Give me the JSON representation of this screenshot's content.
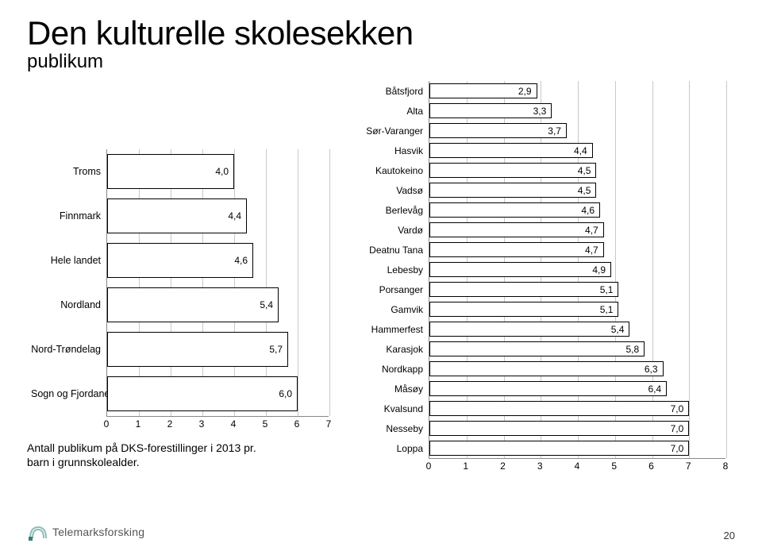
{
  "title": "Den kulturelle skolesekken",
  "subtitle": "publikum",
  "caption_line1": "Antall publikum på DKS-forestillinger i 2013 pr.",
  "caption_line2": "barn i grunnskolealder.",
  "page_number": "20",
  "logo_text": "Telemarksforsking",
  "colors": {
    "bar_fill": "#ffffff",
    "bar_border": "#000000",
    "grid": "#c9c9c9",
    "axis": "#888888",
    "text": "#000000",
    "background": "#ffffff",
    "logo_icon_fill": "#3f7b7a",
    "logo_icon_stroke": "#8dbdb9"
  },
  "fonts": {
    "title_size_pt": 32,
    "subtitle_size_pt": 18,
    "label_size_pt": 10,
    "value_size_pt": 9,
    "caption_size_pt": 11
  },
  "left_chart": {
    "type": "bar",
    "orientation": "horizontal",
    "xlim": [
      0,
      7
    ],
    "xtick_step": 1,
    "xticks": [
      "0",
      "1",
      "2",
      "3",
      "4",
      "5",
      "6",
      "7"
    ],
    "bar_height_ratio": 0.78,
    "categories": [
      "Troms",
      "Finnmark",
      "Hele landet",
      "Nordland",
      "Nord-Trøndelag",
      "Sogn og Fjordane"
    ],
    "values": [
      4.0,
      4.4,
      4.6,
      5.4,
      5.7,
      6.0
    ],
    "value_labels": [
      "4,0",
      "4,4",
      "4,6",
      "5,4",
      "5,7",
      "6,0"
    ]
  },
  "right_chart": {
    "type": "bar",
    "orientation": "horizontal",
    "xlim": [
      0,
      8
    ],
    "xtick_step": 1,
    "xticks": [
      "0",
      "1",
      "2",
      "3",
      "4",
      "5",
      "6",
      "7",
      "8"
    ],
    "bar_height_ratio": 0.78,
    "categories": [
      "Båtsfjord",
      "Alta",
      "Sør-Varanger",
      "Hasvik",
      "Kautokeino",
      "Vadsø",
      "Berlevåg",
      "Vardø",
      "Deatnu Tana",
      "Lebesby",
      "Porsanger",
      "Gamvik",
      "Hammerfest",
      "Karasjok",
      "Nordkapp",
      "Måsøy",
      "Kvalsund",
      "Nesseby",
      "Loppa"
    ],
    "values": [
      2.9,
      3.3,
      3.7,
      4.4,
      4.5,
      4.5,
      4.6,
      4.7,
      4.7,
      4.9,
      5.1,
      5.1,
      5.4,
      5.8,
      6.3,
      6.4,
      7.0,
      7.0,
      7.0
    ],
    "value_labels": [
      "2,9",
      "3,3",
      "3,7",
      "4,4",
      "4,5",
      "4,5",
      "4,6",
      "4,7",
      "4,7",
      "4,9",
      "5,1",
      "5,1",
      "5,4",
      "5,8",
      "6,3",
      "6,4",
      "7,0",
      "7,0",
      "7,0"
    ]
  }
}
